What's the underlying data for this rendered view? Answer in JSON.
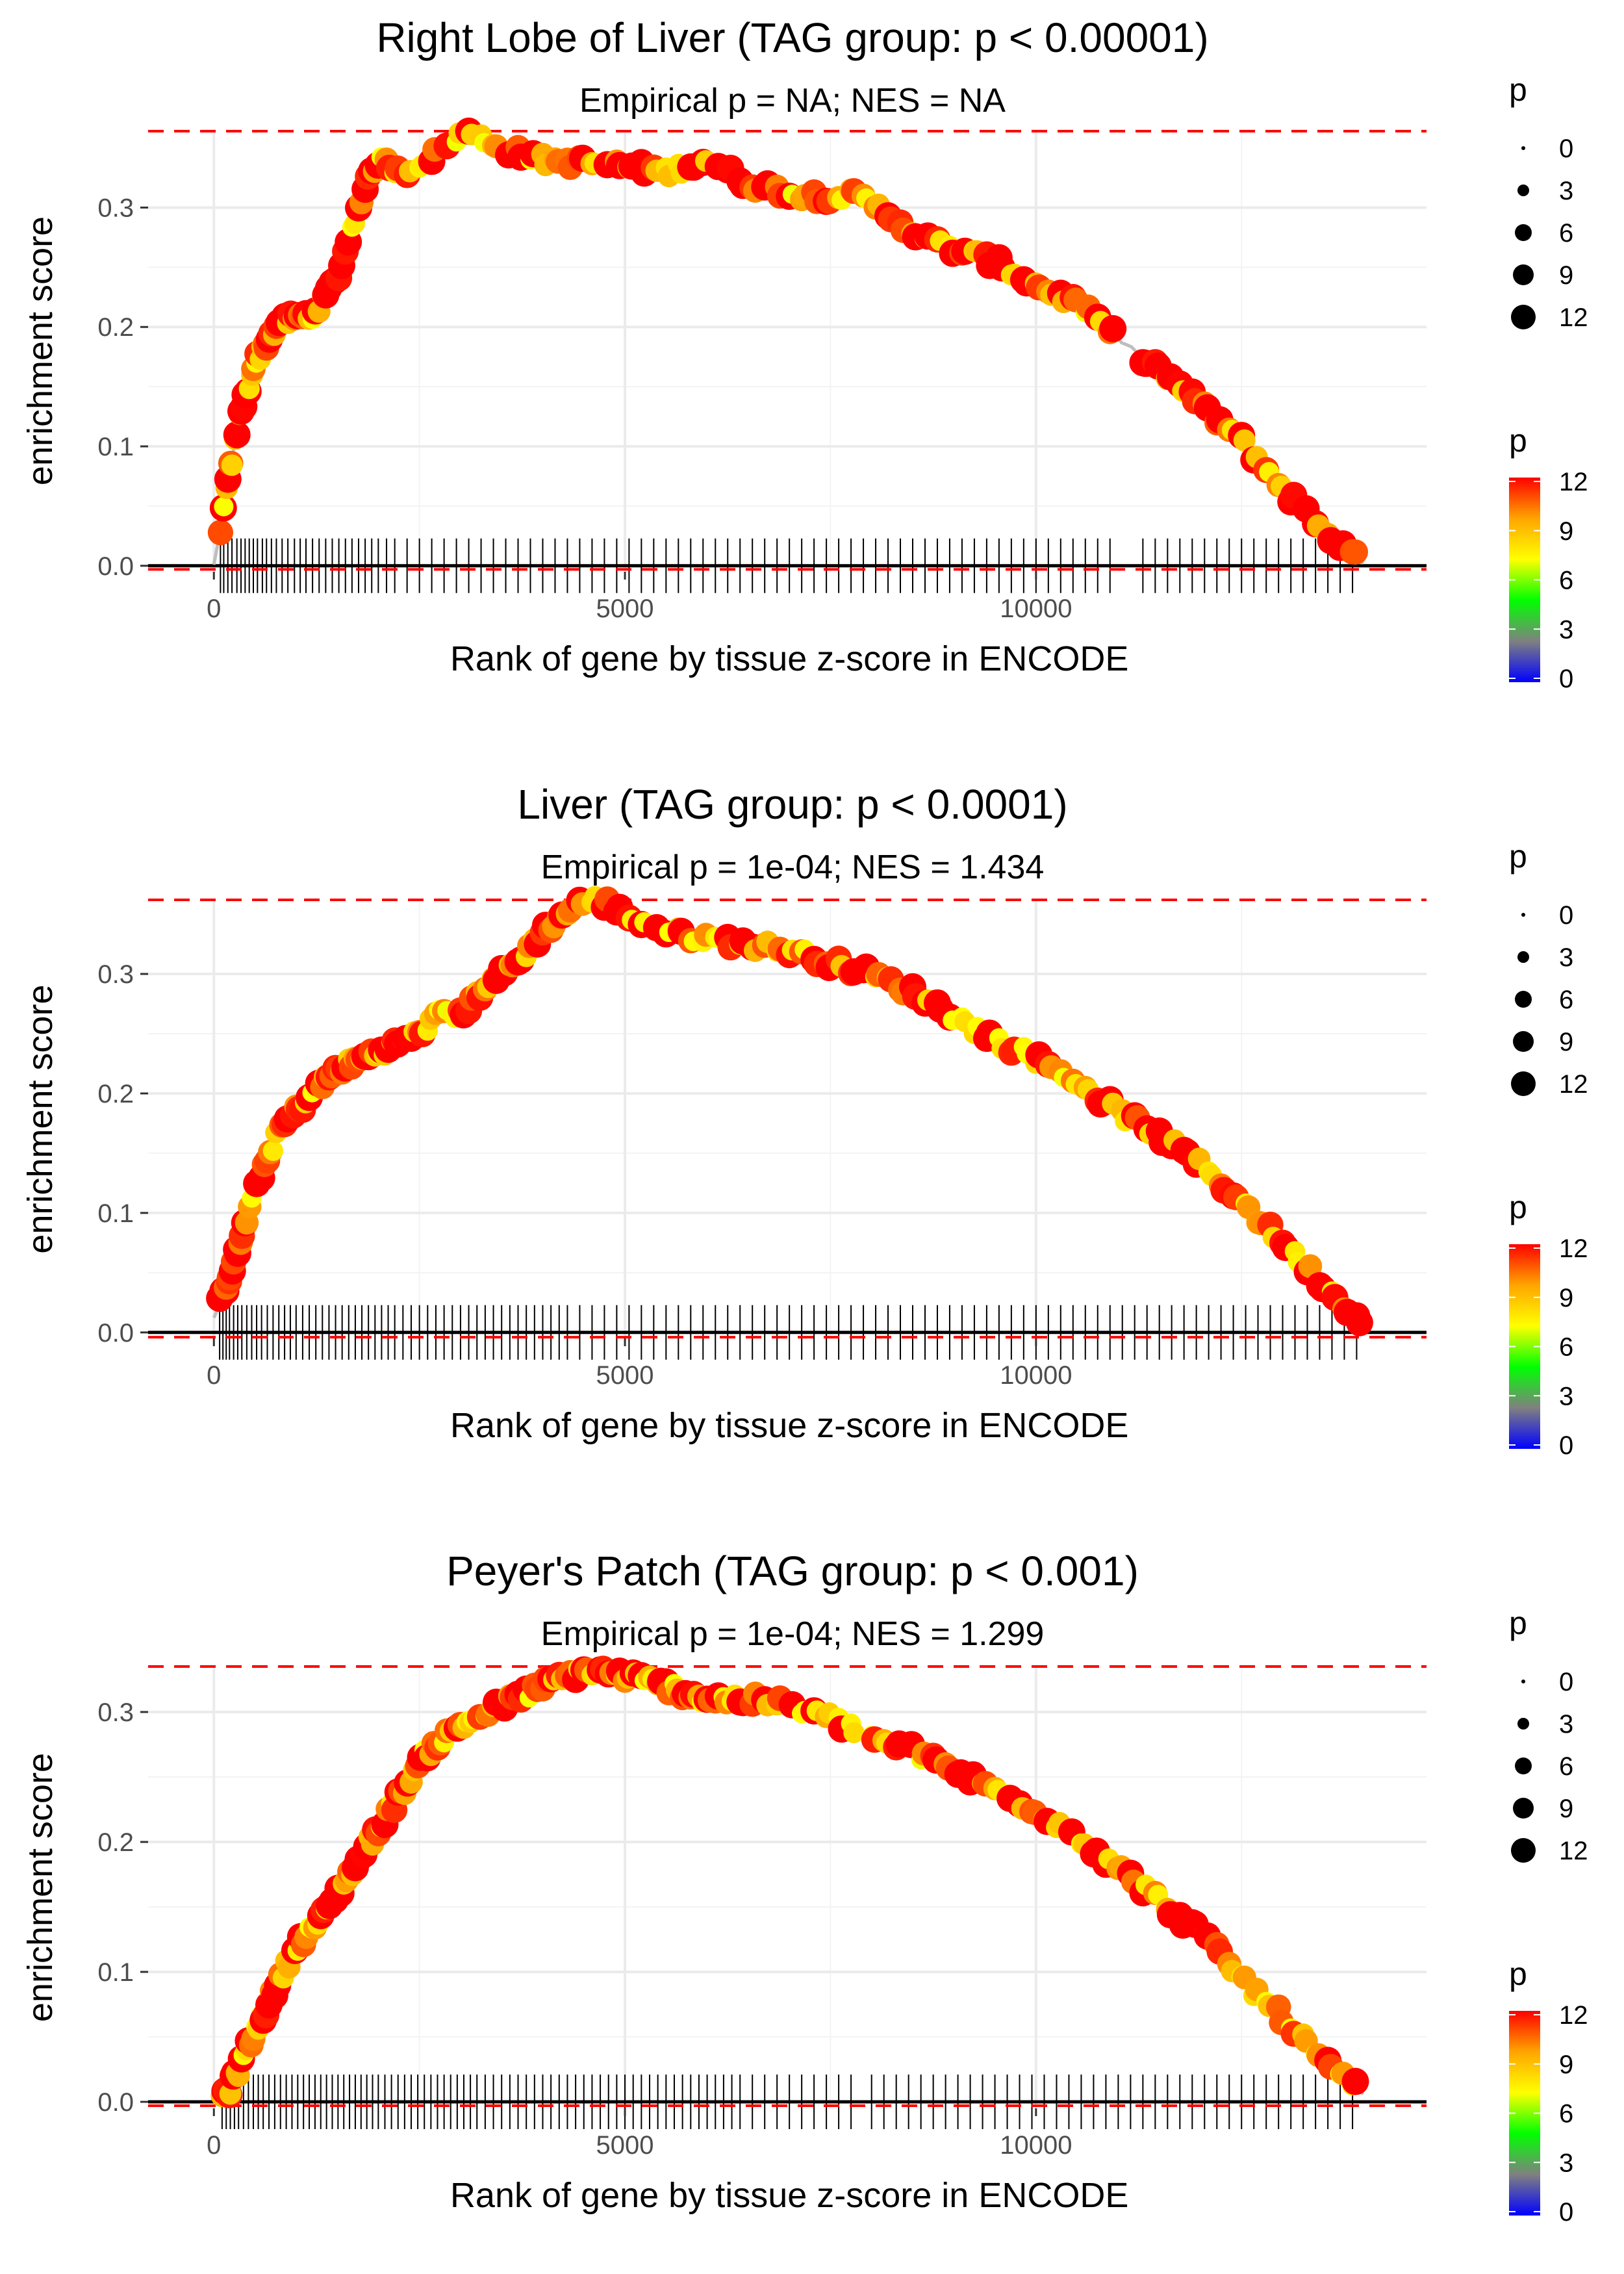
{
  "chart_data": [
    {
      "type": "scatter",
      "title": "Right Lobe of Liver (TAG group: p < 0.00001)",
      "subtitle": "Empirical p = NA; NES = NA",
      "xlabel": "Rank of gene by tissue z-score in ENCODE",
      "ylabel": "enrichment score",
      "xlim": [
        -800,
        14750
      ],
      "ylim": [
        -0.005,
        0.365
      ],
      "x_ticks": [
        0,
        5000,
        10000
      ],
      "x_tick_labels": [
        "0",
        "5000",
        "10000"
      ],
      "y_ticks": [
        0.0,
        0.1,
        0.2,
        0.3
      ],
      "y_tick_labels": [
        "0.0",
        "0.1",
        "0.2",
        "0.3"
      ],
      "max_es": 0.364,
      "min_es": -0.003,
      "n_genes": 14000,
      "curve": [
        [
          0,
          0.0
        ],
        [
          50,
          0.02
        ],
        [
          150,
          0.06
        ],
        [
          300,
          0.12
        ],
        [
          500,
          0.17
        ],
        [
          800,
          0.205
        ],
        [
          1200,
          0.21
        ],
        [
          1500,
          0.24
        ],
        [
          1800,
          0.31
        ],
        [
          2000,
          0.34
        ],
        [
          2300,
          0.33
        ],
        [
          2600,
          0.34
        ],
        [
          3050,
          0.364
        ],
        [
          3500,
          0.35
        ],
        [
          4000,
          0.34
        ],
        [
          5000,
          0.335
        ],
        [
          5500,
          0.33
        ],
        [
          6000,
          0.34
        ],
        [
          6500,
          0.32
        ],
        [
          7200,
          0.31
        ],
        [
          7800,
          0.31
        ],
        [
          8200,
          0.295
        ],
        [
          8600,
          0.275
        ],
        [
          9000,
          0.265
        ],
        [
          9500,
          0.255
        ],
        [
          10000,
          0.235
        ],
        [
          10500,
          0.22
        ],
        [
          11000,
          0.19
        ],
        [
          11500,
          0.165
        ],
        [
          12000,
          0.135
        ],
        [
          12500,
          0.105
        ],
        [
          13000,
          0.065
        ],
        [
          13500,
          0.03
        ],
        [
          14000,
          0.0
        ]
      ],
      "hit_ranks": [
        80,
        120,
        170,
        220,
        280,
        330,
        380,
        430,
        480,
        530,
        590,
        640,
        700,
        760,
        830,
        900,
        980,
        1050,
        1120,
        1200,
        1280,
        1360,
        1440,
        1520,
        1600,
        1680,
        1760,
        1840,
        1920,
        2000,
        2100,
        2200,
        2350,
        2500,
        2650,
        2800,
        2950,
        3100,
        3250,
        3400,
        3550,
        3700,
        3850,
        4000,
        4150,
        4300,
        4450,
        4600,
        4750,
        4900,
        5050,
        5200,
        5350,
        5500,
        5650,
        5800,
        5950,
        6100,
        6250,
        6400,
        6550,
        6700,
        6850,
        7000,
        7150,
        7300,
        7450,
        7600,
        7750,
        7900,
        8050,
        8200,
        8350,
        8500,
        8650,
        8800,
        8950,
        9100,
        9250,
        9400,
        9550,
        9700,
        9850,
        10000,
        10150,
        10300,
        10450,
        10600,
        10750,
        10900,
        11300,
        11450,
        11600,
        11750,
        11900,
        12050,
        12200,
        12350,
        12500,
        12650,
        12800,
        12950,
        13100,
        13250,
        13400,
        13550,
        13700,
        13850
      ]
    },
    {
      "type": "scatter",
      "title": "Liver (TAG group: p < 0.0001)",
      "subtitle": "Empirical p = 1e-04; NES = 1.434",
      "xlabel": "Rank of gene by tissue z-score in ENCODE",
      "ylabel": "enrichment score",
      "xlim": [
        -800,
        14750
      ],
      "ylim": [
        -0.005,
        0.362
      ],
      "x_ticks": [
        0,
        5000,
        10000
      ],
      "x_tick_labels": [
        "0",
        "5000",
        "10000"
      ],
      "y_ticks": [
        0.0,
        0.1,
        0.2,
        0.3
      ],
      "y_tick_labels": [
        "0.0",
        "0.1",
        "0.2",
        "0.3"
      ],
      "max_es": 0.362,
      "min_es": -0.004,
      "n_genes": 14000,
      "curve": [
        [
          0,
          0.01
        ],
        [
          150,
          0.04
        ],
        [
          300,
          0.07
        ],
        [
          500,
          0.12
        ],
        [
          800,
          0.17
        ],
        [
          1200,
          0.2
        ],
        [
          1500,
          0.22
        ],
        [
          2000,
          0.235
        ],
        [
          2500,
          0.25
        ],
        [
          2800,
          0.27
        ],
        [
          3000,
          0.265
        ],
        [
          3300,
          0.29
        ],
        [
          3700,
          0.31
        ],
        [
          4000,
          0.335
        ],
        [
          4400,
          0.358
        ],
        [
          4700,
          0.362
        ],
        [
          5000,
          0.35
        ],
        [
          5500,
          0.335
        ],
        [
          6000,
          0.33
        ],
        [
          6500,
          0.325
        ],
        [
          7000,
          0.32
        ],
        [
          7500,
          0.31
        ],
        [
          8000,
          0.3
        ],
        [
          8500,
          0.285
        ],
        [
          9000,
          0.265
        ],
        [
          9500,
          0.245
        ],
        [
          10000,
          0.23
        ],
        [
          10500,
          0.21
        ],
        [
          11000,
          0.185
        ],
        [
          11500,
          0.165
        ],
        [
          12000,
          0.14
        ],
        [
          12500,
          0.11
        ],
        [
          13000,
          0.075
        ],
        [
          13500,
          0.04
        ],
        [
          14000,
          0.005
        ]
      ],
      "hit_ranks": [
        70,
        110,
        150,
        190,
        240,
        290,
        340,
        400,
        460,
        520,
        580,
        650,
        720,
        790,
        860,
        930,
        1000,
        1080,
        1160,
        1240,
        1320,
        1400,
        1480,
        1560,
        1640,
        1720,
        1800,
        1880,
        1960,
        2040,
        2120,
        2200,
        2300,
        2400,
        2500,
        2600,
        2700,
        2800,
        2900,
        3000,
        3100,
        3200,
        3300,
        3400,
        3500,
        3600,
        3700,
        3800,
        3900,
        4000,
        4100,
        4200,
        4300,
        4450,
        4600,
        4750,
        4900,
        5050,
        5200,
        5350,
        5500,
        5650,
        5800,
        5950,
        6100,
        6250,
        6400,
        6550,
        6700,
        6850,
        7000,
        7150,
        7300,
        7450,
        7600,
        7750,
        7900,
        8050,
        8200,
        8350,
        8500,
        8650,
        8800,
        8950,
        9100,
        9250,
        9400,
        9550,
        9700,
        9850,
        10000,
        10150,
        10300,
        10450,
        10600,
        10750,
        10900,
        11050,
        11200,
        11350,
        11500,
        11650,
        11800,
        11950,
        12100,
        12250,
        12400,
        12550,
        12700,
        12850,
        13000,
        13150,
        13300,
        13450,
        13600,
        13750,
        13900
      ]
    },
    {
      "type": "scatter",
      "title": "Peyer's Patch (TAG group: p < 0.001)",
      "subtitle": "Empirical p = 1e-04; NES = 1.299",
      "xlabel": "Rank of gene by tissue z-score in ENCODE",
      "ylabel": "enrichment score",
      "xlim": [
        -800,
        14750
      ],
      "ylim": [
        -0.005,
        0.335
      ],
      "x_ticks": [
        0,
        5000,
        10000
      ],
      "x_tick_labels": [
        "0",
        "5000",
        "10000"
      ],
      "y_ticks": [
        0.0,
        0.1,
        0.2,
        0.3
      ],
      "y_tick_labels": [
        "0.0",
        "0.1",
        "0.2",
        "0.3"
      ],
      "max_es": 0.335,
      "min_es": -0.003,
      "n_genes": 14000,
      "curve": [
        [
          0,
          0.0
        ],
        [
          200,
          0.01
        ],
        [
          400,
          0.04
        ],
        [
          700,
          0.08
        ],
        [
          1000,
          0.12
        ],
        [
          1300,
          0.14
        ],
        [
          1600,
          0.17
        ],
        [
          2000,
          0.21
        ],
        [
          2300,
          0.24
        ],
        [
          2600,
          0.27
        ],
        [
          3000,
          0.29
        ],
        [
          3500,
          0.305
        ],
        [
          4000,
          0.32
        ],
        [
          4500,
          0.332
        ],
        [
          5000,
          0.328
        ],
        [
          5500,
          0.32
        ],
        [
          6000,
          0.31
        ],
        [
          6500,
          0.31
        ],
        [
          7000,
          0.305
        ],
        [
          7500,
          0.295
        ],
        [
          8000,
          0.28
        ],
        [
          8500,
          0.27
        ],
        [
          9000,
          0.255
        ],
        [
          9500,
          0.24
        ],
        [
          10000,
          0.225
        ],
        [
          10500,
          0.205
        ],
        [
          11000,
          0.18
        ],
        [
          11500,
          0.155
        ],
        [
          12000,
          0.13
        ],
        [
          12500,
          0.095
        ],
        [
          13000,
          0.065
        ],
        [
          13500,
          0.03
        ],
        [
          14000,
          0.005
        ]
      ],
      "hit_ranks": [
        100,
        150,
        200,
        250,
        300,
        360,
        420,
        480,
        540,
        600,
        670,
        740,
        810,
        880,
        950,
        1020,
        1090,
        1160,
        1230,
        1300,
        1370,
        1440,
        1510,
        1580,
        1650,
        1720,
        1790,
        1860,
        1930,
        2000,
        2080,
        2160,
        2240,
        2320,
        2400,
        2480,
        2560,
        2640,
        2720,
        2800,
        2880,
        2960,
        3040,
        3120,
        3200,
        3300,
        3400,
        3500,
        3600,
        3700,
        3800,
        3900,
        4000,
        4100,
        4200,
        4300,
        4400,
        4500,
        4600,
        4700,
        4800,
        4900,
        5000,
        5100,
        5200,
        5300,
        5400,
        5500,
        5600,
        5700,
        5800,
        5900,
        6000,
        6100,
        6200,
        6300,
        6400,
        6550,
        6700,
        6850,
        7000,
        7150,
        7300,
        7450,
        7600,
        7750,
        8000,
        8150,
        8300,
        8450,
        8600,
        8750,
        8900,
        9050,
        9200,
        9350,
        9500,
        9650,
        9800,
        9950,
        10100,
        10250,
        10400,
        10550,
        10700,
        10850,
        11000,
        11150,
        11300,
        11450,
        11600,
        11750,
        11900,
        12050,
        12200,
        12350,
        12500,
        12650,
        12800,
        12950,
        13100,
        13250,
        13400,
        13550,
        13700,
        13850
      ]
    }
  ],
  "legends": {
    "size_title": "p",
    "size_labels": [
      "0",
      "3",
      "6",
      "9",
      "12"
    ],
    "size_values": [
      0,
      3,
      6,
      9,
      12
    ],
    "color_title": "p",
    "color_labels": [
      "12",
      "9",
      "6",
      "3",
      "0"
    ],
    "color_values": [
      12,
      9,
      6,
      3,
      0
    ],
    "color_range": [
      0,
      12
    ],
    "gradient_colors": [
      "#0000ff",
      "#808080",
      "#00ff00",
      "#ffff00",
      "#ffa500",
      "#ff0000"
    ]
  },
  "colors": {
    "hline": "#ff0000",
    "curve": "#bebebe",
    "ticks": "#000000",
    "grid": "#ebebeb",
    "zero_line": "#000000"
  }
}
